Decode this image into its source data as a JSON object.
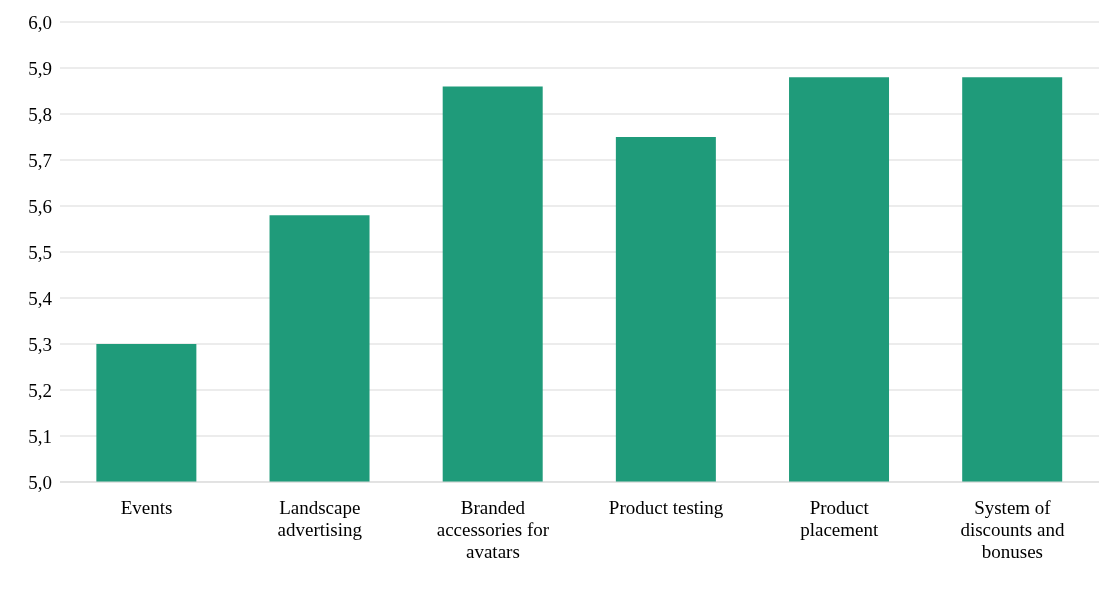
{
  "chart_data": {
    "type": "bar",
    "categories": [
      "Events",
      "Landscape advertising",
      "Branded accessories for avatars",
      "Product testing",
      "Product placement",
      "System of discounts and bonuses"
    ],
    "values": [
      5.3,
      5.58,
      5.86,
      5.75,
      5.88,
      5.88
    ],
    "color": "#1f9b7a",
    "ylim": [
      5.0,
      6.0
    ],
    "yticks": [
      {
        "value": 5.0,
        "label": "5,0"
      },
      {
        "value": 5.1,
        "label": "5,1"
      },
      {
        "value": 5.2,
        "label": "5,2"
      },
      {
        "value": 5.3,
        "label": "5,3"
      },
      {
        "value": 5.4,
        "label": "5,4"
      },
      {
        "value": 5.5,
        "label": "5,5"
      },
      {
        "value": 5.6,
        "label": "5,6"
      },
      {
        "value": 5.7,
        "label": "5,7"
      },
      {
        "value": 5.8,
        "label": "5,8"
      },
      {
        "value": 5.9,
        "label": "5,9"
      },
      {
        "value": 6.0,
        "label": "6,0"
      }
    ],
    "grid": "y"
  }
}
